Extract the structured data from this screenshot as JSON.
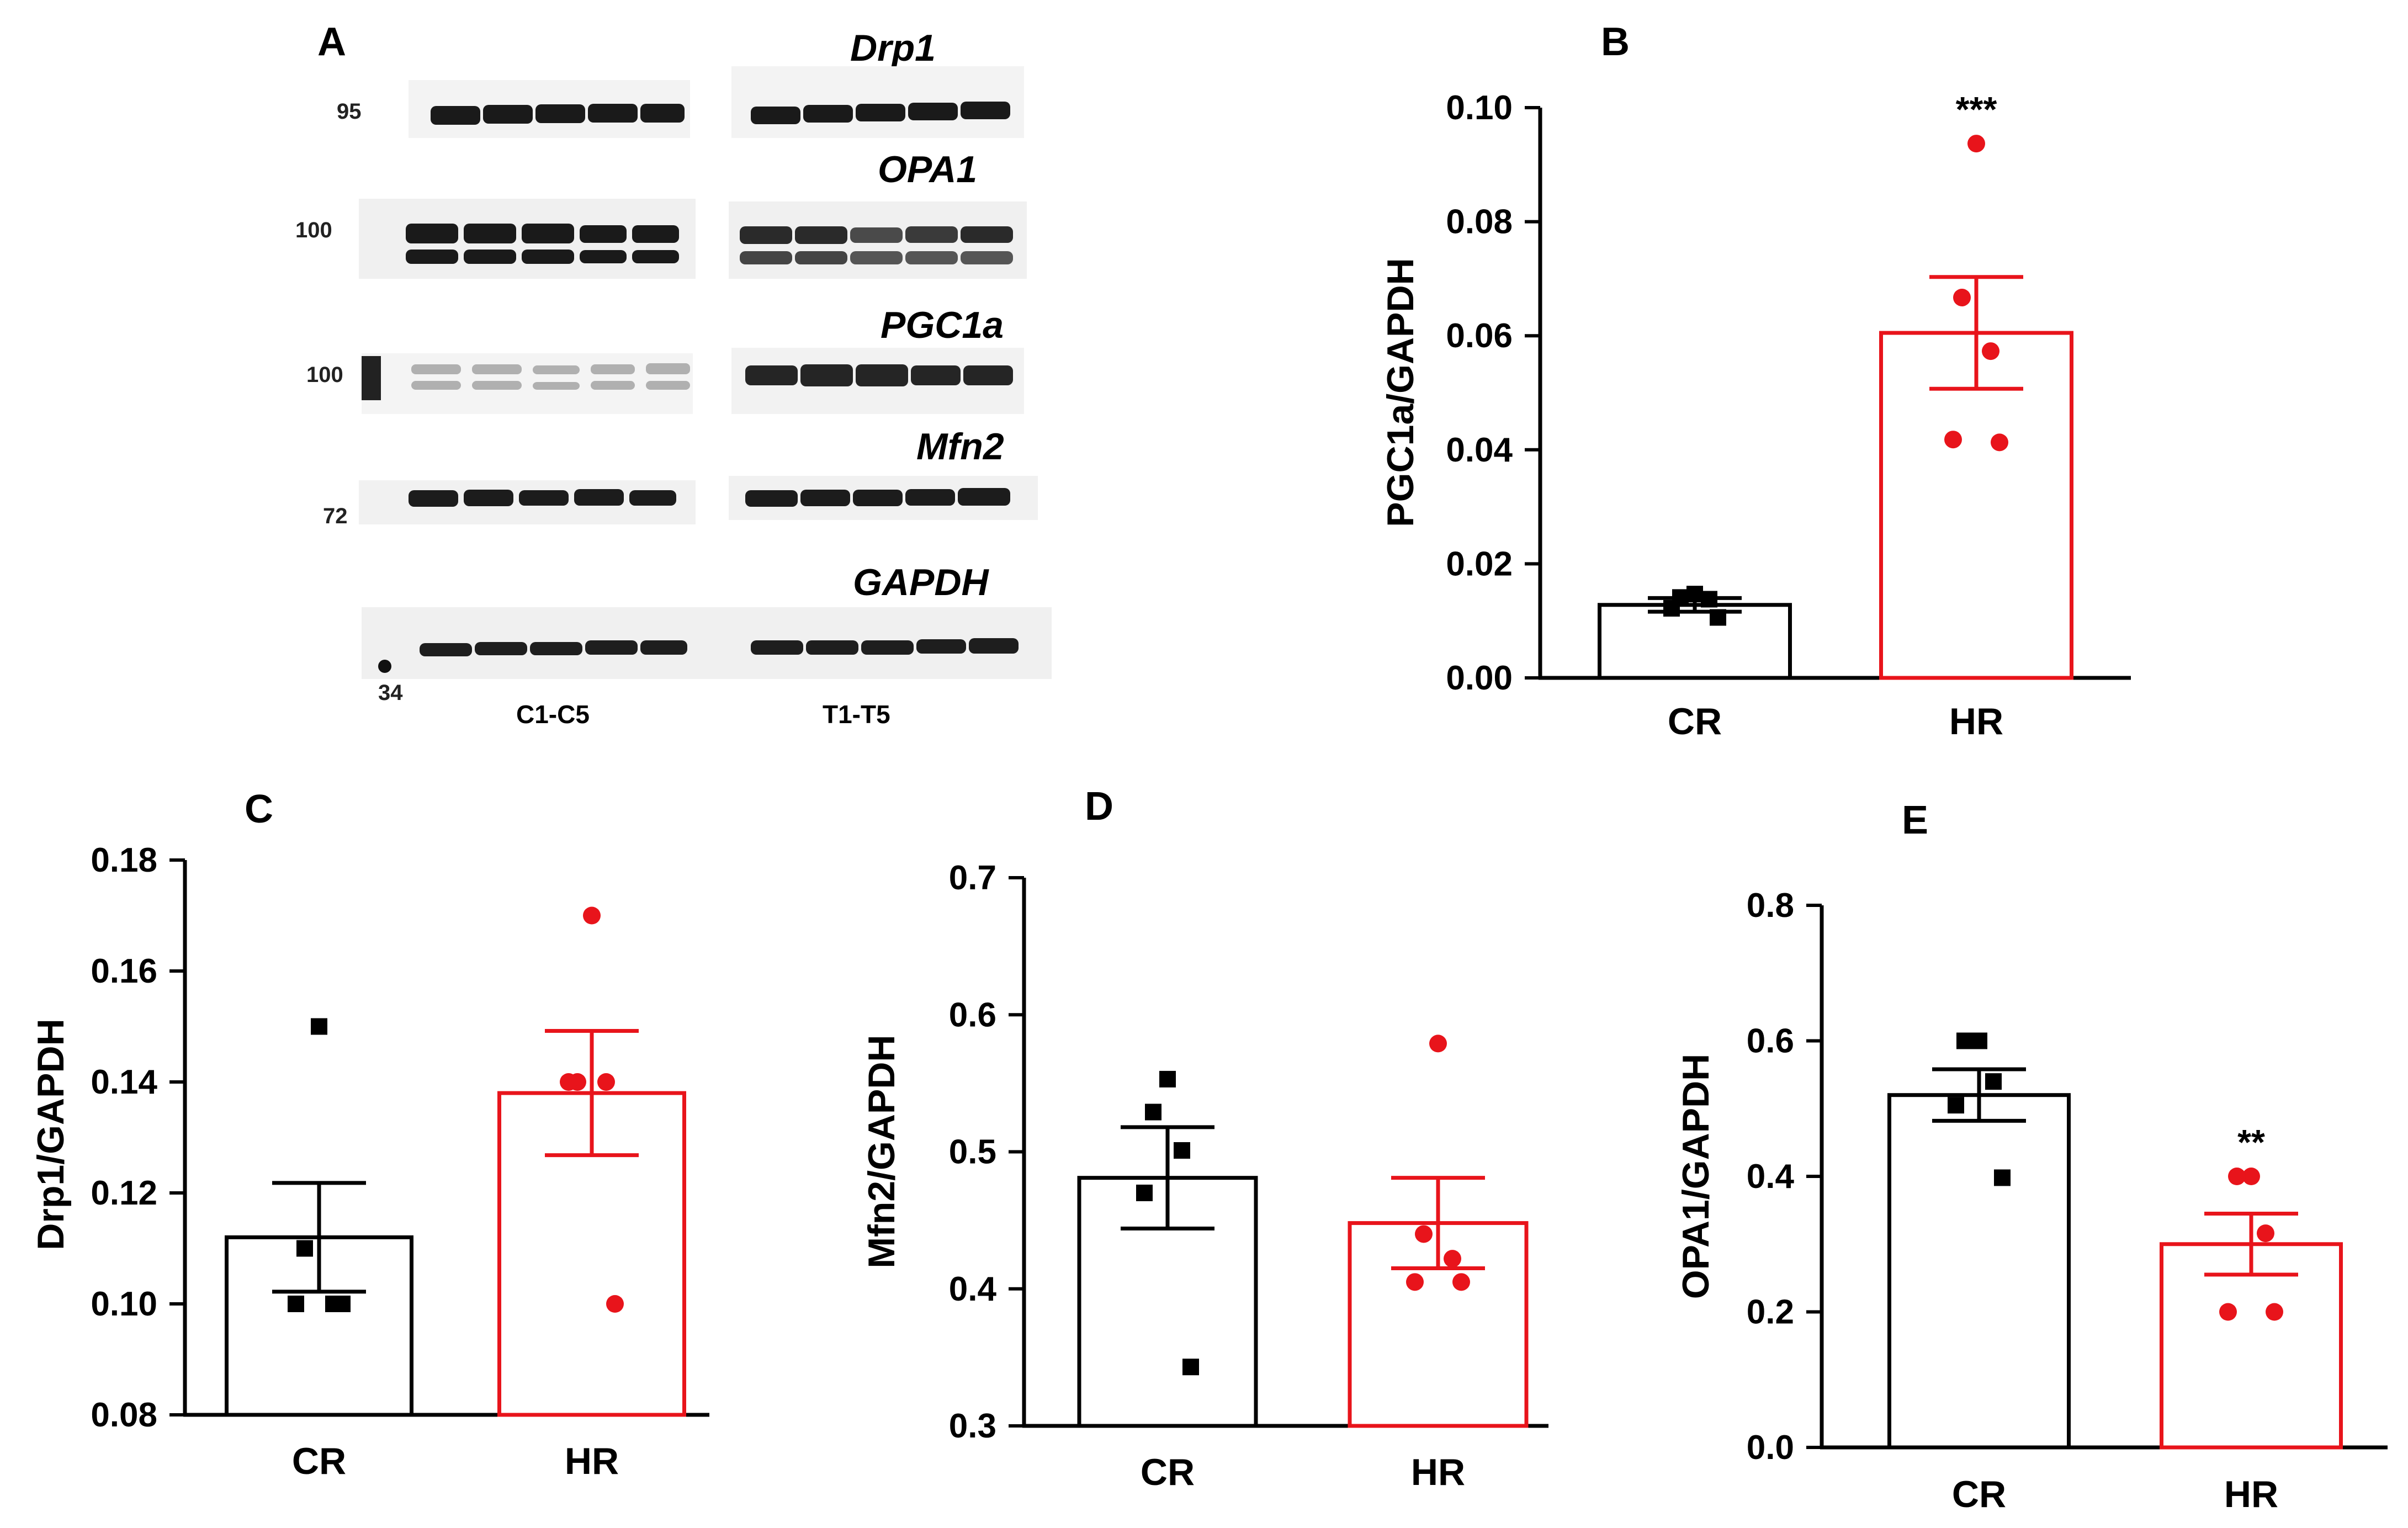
{
  "colors": {
    "control": "#000000",
    "treated": "#e8141b",
    "background": "#ffffff",
    "membrane": "#f0f0f0",
    "band": "#1a1a1a"
  },
  "panel_a": {
    "letter": "A",
    "blots": [
      {
        "protein": "Drp1",
        "marker": "95"
      },
      {
        "protein": "OPA1",
        "marker": "100"
      },
      {
        "protein": "PGC1a",
        "marker": "100"
      },
      {
        "protein": "Mfn2",
        "marker": "72"
      },
      {
        "protein": "GAPDH",
        "marker": "34"
      }
    ],
    "groups": [
      "C1-C5",
      "T1-T5"
    ]
  },
  "chart_data": [
    {
      "id": "B",
      "type": "bar",
      "title": "B",
      "categories": [
        "CR",
        "HR"
      ],
      "ylabel": "PGC1a/GAPDH",
      "xlabel": "",
      "ylim": [
        0,
        0.1
      ],
      "yticks": [
        "0.00",
        "0.02",
        "0.04",
        "0.06",
        "0.08",
        "0.10"
      ],
      "means": [
        0.0128,
        0.0605
      ],
      "sem": [
        0.0012,
        0.0098
      ],
      "points": [
        [
          0.0147,
          0.0141,
          0.0138,
          0.0122,
          0.0106
        ],
        [
          0.0937,
          0.0667,
          0.0573,
          0.0418,
          0.0413
        ]
      ],
      "significance": [
        "",
        "***"
      ]
    },
    {
      "id": "C",
      "type": "bar",
      "title": "C",
      "categories": [
        "CR",
        "HR"
      ],
      "ylabel": "Drp1/GAPDH",
      "xlabel": "",
      "ylim": [
        0.08,
        0.18
      ],
      "yticks": [
        "0.08",
        "0.10",
        "0.12",
        "0.14",
        "0.16",
        "0.18"
      ],
      "means": [
        0.112,
        0.138
      ],
      "sem": [
        0.0098,
        0.0112
      ],
      "points": [
        [
          0.15,
          0.11,
          0.1,
          0.1,
          0.1
        ],
        [
          0.17,
          0.14,
          0.14,
          0.14,
          0.1
        ]
      ],
      "significance": [
        "",
        ""
      ]
    },
    {
      "id": "D",
      "type": "bar",
      "title": "D",
      "categories": [
        "CR",
        "HR"
      ],
      "ylabel": "Mfn2/GAPDH",
      "xlabel": "",
      "ylim": [
        0.3,
        0.7
      ],
      "yticks": [
        "0.3",
        "0.4",
        "0.5",
        "0.6",
        "0.7"
      ],
      "means": [
        0.481,
        0.448
      ],
      "sem": [
        0.037,
        0.033
      ],
      "points": [
        [
          0.553,
          0.529,
          0.501,
          0.47,
          0.343
        ],
        [
          0.579,
          0.44,
          0.422,
          0.405,
          0.405
        ]
      ],
      "significance": [
        "",
        ""
      ]
    },
    {
      "id": "E",
      "type": "bar",
      "title": "E",
      "categories": [
        "CR",
        "HR"
      ],
      "ylabel": "OPA1/GAPDH",
      "xlabel": "",
      "ylim": [
        0,
        0.8
      ],
      "yticks": [
        "0.0",
        "0.2",
        "0.4",
        "0.6",
        "0.8"
      ],
      "means": [
        0.52,
        0.3
      ],
      "sem": [
        0.038,
        0.045
      ],
      "points": [
        [
          0.6,
          0.6,
          0.54,
          0.505,
          0.398
        ],
        [
          0.4,
          0.4,
          0.316,
          0.2,
          0.2
        ]
      ],
      "significance": [
        "",
        "**"
      ]
    }
  ]
}
